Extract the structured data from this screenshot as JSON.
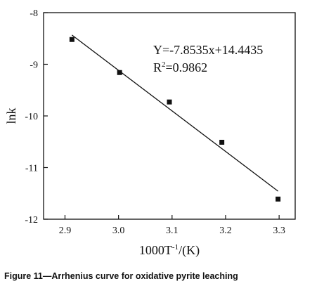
{
  "caption": "Figure 11—Arrhenius curve for oxidative pyrite leaching",
  "chart_data": {
    "type": "scatter",
    "xlabel_main": "1000T",
    "xlabel_sup": "-1",
    "xlabel_end": "/(K)",
    "ylabel": "lnk",
    "xlim": [
      2.86,
      3.33
    ],
    "ylim": [
      -12,
      -8
    ],
    "xticks": [
      2.9,
      3.0,
      3.1,
      3.2,
      3.3
    ],
    "xtick_labels": [
      "2.9",
      "3.0",
      "3.1",
      "3.2",
      "3.3"
    ],
    "yticks": [
      -8,
      -9,
      -10,
      -11,
      -12
    ],
    "ytick_labels": [
      "-8",
      "-9",
      "-10",
      "-11",
      "-12"
    ],
    "x": [
      2.913,
      3.002,
      3.095,
      3.193,
      3.298
    ],
    "y": [
      -8.52,
      -9.16,
      -9.73,
      -10.51,
      -11.61
    ],
    "fit": {
      "slope": -7.8535,
      "intercept": 14.4435,
      "x_range": [
        2.913,
        3.298
      ]
    },
    "equation": "Y=-7.8535x+14.4435",
    "r2_label": "R",
    "r2_sup": "2",
    "r2_value": "=0.9862",
    "grid": false,
    "legend": "none"
  }
}
